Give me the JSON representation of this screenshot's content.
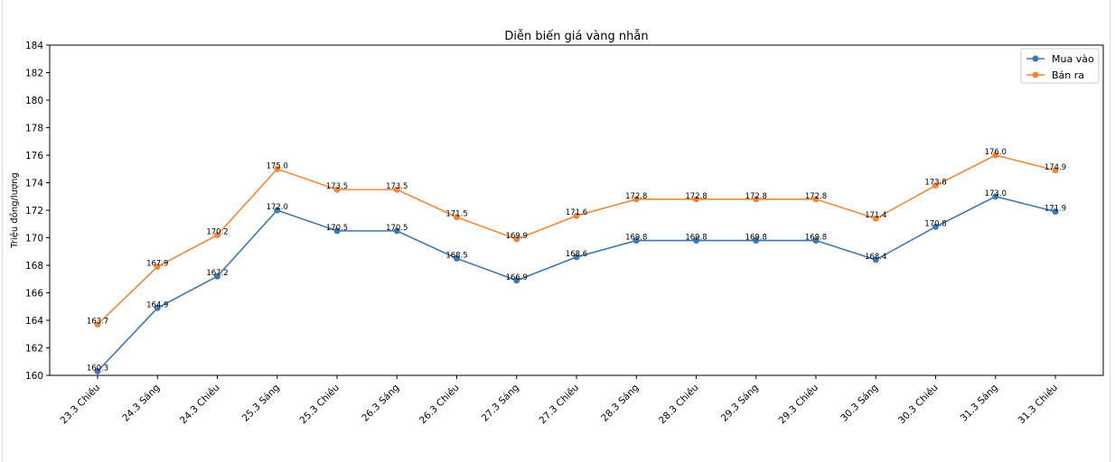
{
  "chart_data": {
    "type": "line",
    "title": "Diễn biến giá vàng nhẫn",
    "xlabel": "",
    "ylabel": "Triệu đồng/lượng",
    "ylim": [
      160,
      184
    ],
    "yticks": [
      160,
      162,
      164,
      166,
      168,
      170,
      172,
      174,
      176,
      178,
      180,
      182,
      184
    ],
    "grid": false,
    "legend": "top-right",
    "categories": [
      "23.3 Chiều",
      "24.3 Sáng",
      "24.3 Chiều",
      "25.3 Sáng",
      "25.3 Chiều",
      "26.3 Sáng",
      "26.3 Chiều",
      "27.3 Sáng",
      "27.3 Chiều",
      "28.3 Sáng",
      "28.3 Chiều",
      "29.3 Sáng",
      "29.3 Chiều",
      "30.3 Sáng",
      "30.3 Chiều",
      "31.3 Sáng",
      "31.3 Chiều"
    ],
    "series": [
      {
        "name": "Mua vào",
        "color": "#3d78b4",
        "values": [
          160.3,
          164.9,
          167.2,
          172.0,
          170.5,
          170.5,
          168.5,
          166.9,
          168.6,
          169.8,
          169.8,
          169.8,
          169.8,
          168.4,
          170.8,
          173.0,
          171.9
        ]
      },
      {
        "name": "Bán ra",
        "color": "#f0883a",
        "values": [
          163.7,
          167.9,
          170.2,
          175.0,
          173.5,
          173.5,
          171.5,
          169.9,
          171.6,
          172.8,
          172.8,
          172.8,
          172.8,
          171.4,
          173.8,
          176.0,
          174.9
        ]
      }
    ]
  }
}
